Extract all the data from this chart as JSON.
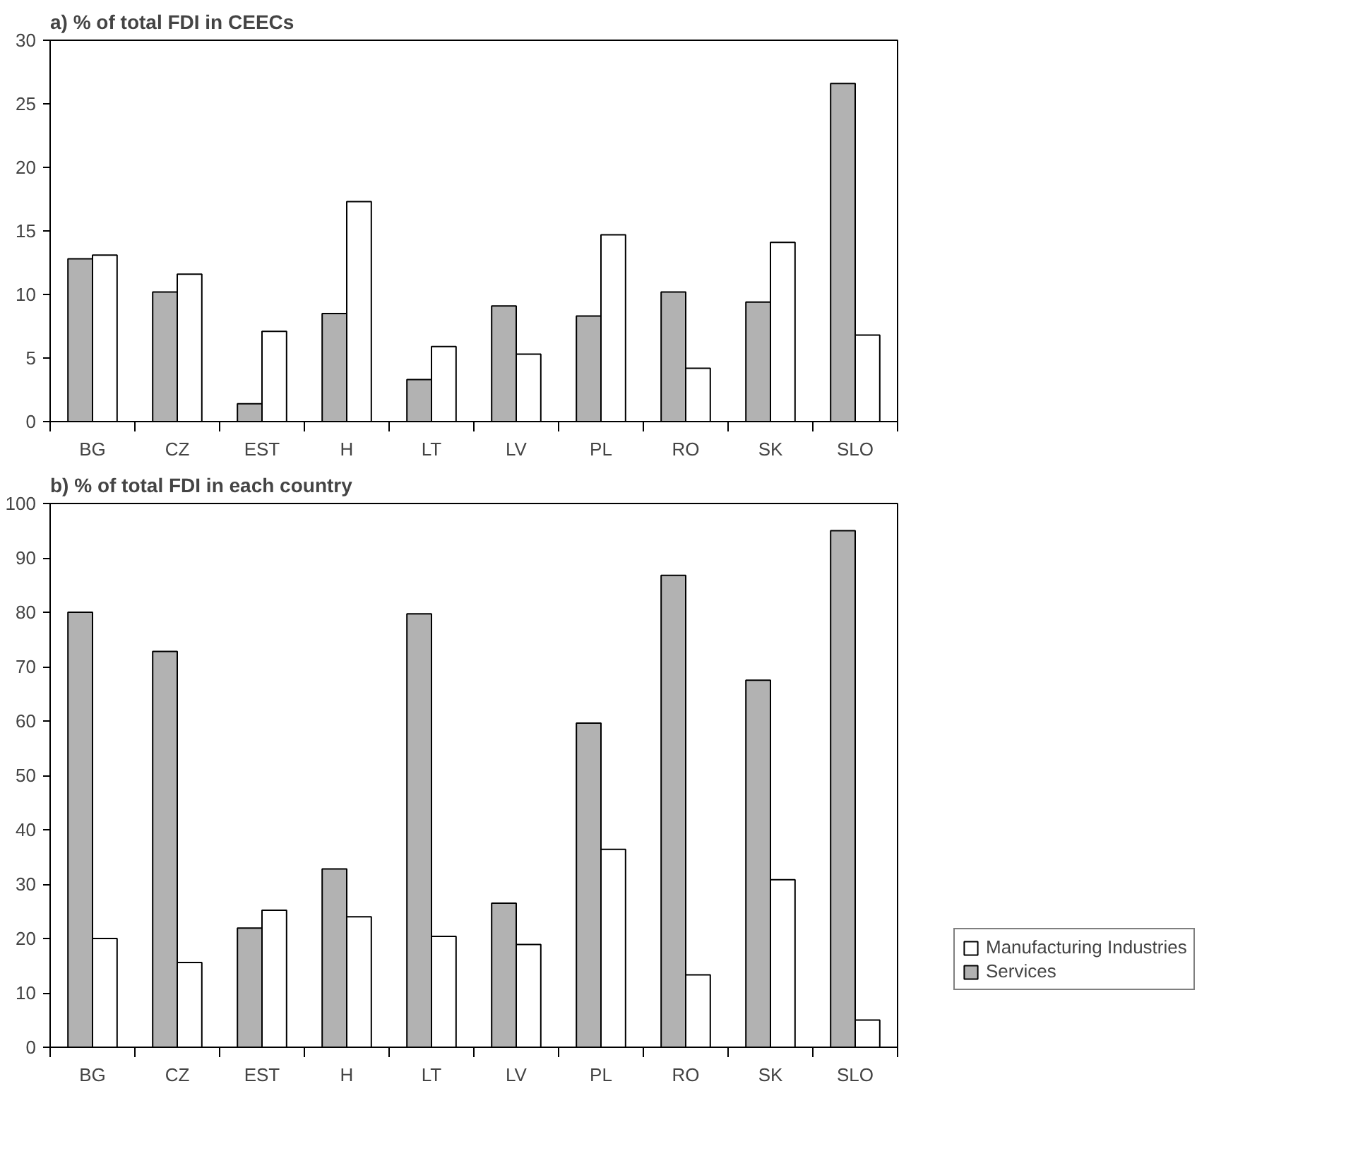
{
  "chart_data": [
    {
      "type": "bar",
      "title": "a) % of total FDI in CEECs",
      "categories": [
        "BG",
        "CZ",
        "EST",
        "H",
        "LT",
        "LV",
        "PL",
        "RO",
        "SK",
        "SLO"
      ],
      "ylim": [
        0,
        30
      ],
      "yticks": [
        0,
        5,
        10,
        15,
        20,
        25,
        30
      ],
      "grid": false,
      "legend": false,
      "series": [
        {
          "color": "#b2b2b2",
          "values": [
            12.8,
            10.2,
            1.4,
            8.5,
            3.3,
            9.1,
            8.3,
            10.2,
            9.4,
            26.6
          ]
        },
        {
          "color": "#ffffff",
          "values": [
            13.1,
            11.6,
            7.1,
            17.3,
            5.9,
            5.3,
            14.7,
            4.2,
            14.1,
            6.8
          ]
        }
      ]
    },
    {
      "type": "bar",
      "title": "b) % of total FDI in each country",
      "categories": [
        "BG",
        "CZ",
        "EST",
        "H",
        "LT",
        "LV",
        "PL",
        "RO",
        "SK",
        "SLO"
      ],
      "ylim": [
        0,
        100
      ],
      "yticks": [
        0,
        10,
        20,
        30,
        40,
        50,
        60,
        70,
        80,
        90,
        100
      ],
      "grid": false,
      "legend": "bottom right",
      "series": [
        {
          "name": "Services",
          "color": "#b2b2b2",
          "values": [
            80,
            72.8,
            21.9,
            32.8,
            79.7,
            26.5,
            59.6,
            86.8,
            67.5,
            95.0
          ]
        },
        {
          "name": "Manufacturing Industries",
          "color": "#ffffff",
          "values": [
            20,
            15.6,
            25.2,
            24.0,
            20.4,
            18.9,
            36.4,
            13.3,
            30.8,
            5.0
          ]
        }
      ]
    }
  ]
}
